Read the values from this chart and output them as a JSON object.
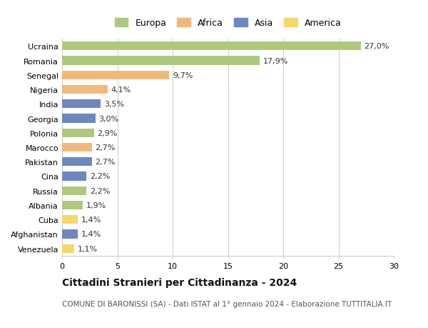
{
  "categories": [
    "Ucraina",
    "Romania",
    "Senegal",
    "Nigeria",
    "India",
    "Georgia",
    "Polonia",
    "Marocco",
    "Pakistan",
    "Cina",
    "Russia",
    "Albania",
    "Cuba",
    "Afghanistan",
    "Venezuela"
  ],
  "values": [
    27.0,
    17.9,
    9.7,
    4.1,
    3.5,
    3.0,
    2.9,
    2.7,
    2.7,
    2.2,
    2.2,
    1.9,
    1.4,
    1.4,
    1.1
  ],
  "labels": [
    "27,0%",
    "17,9%",
    "9,7%",
    "4,1%",
    "3,5%",
    "3,0%",
    "2,9%",
    "2,7%",
    "2,7%",
    "2,2%",
    "2,2%",
    "1,9%",
    "1,4%",
    "1,4%",
    "1,1%"
  ],
  "colors": [
    "#aec97e",
    "#aec97e",
    "#f0b97a",
    "#f0b97a",
    "#6e87c0",
    "#6e87c0",
    "#aec97e",
    "#f0b97a",
    "#6e87c0",
    "#6e87c0",
    "#aec97e",
    "#aec97e",
    "#f5d76a",
    "#6e87c0",
    "#f5d76a"
  ],
  "legend_labels": [
    "Europa",
    "Africa",
    "Asia",
    "America"
  ],
  "legend_colors": [
    "#aec97e",
    "#f0b97a",
    "#6e87c0",
    "#f5d76a"
  ],
  "title": "Cittadini Stranieri per Cittadinanza - 2024",
  "subtitle": "COMUNE DI BARONISSI (SA) - Dati ISTAT al 1° gennaio 2024 - Elaborazione TUTTITALIA.IT",
  "xlim": [
    0,
    30
  ],
  "xticks": [
    0,
    5,
    10,
    15,
    20,
    25,
    30
  ],
  "bg_color": "#ffffff",
  "grid_color": "#cccccc",
  "bar_height": 0.6,
  "title_fontsize": 10,
  "subtitle_fontsize": 7.5,
  "label_fontsize": 8,
  "tick_fontsize": 8,
  "legend_fontsize": 9
}
